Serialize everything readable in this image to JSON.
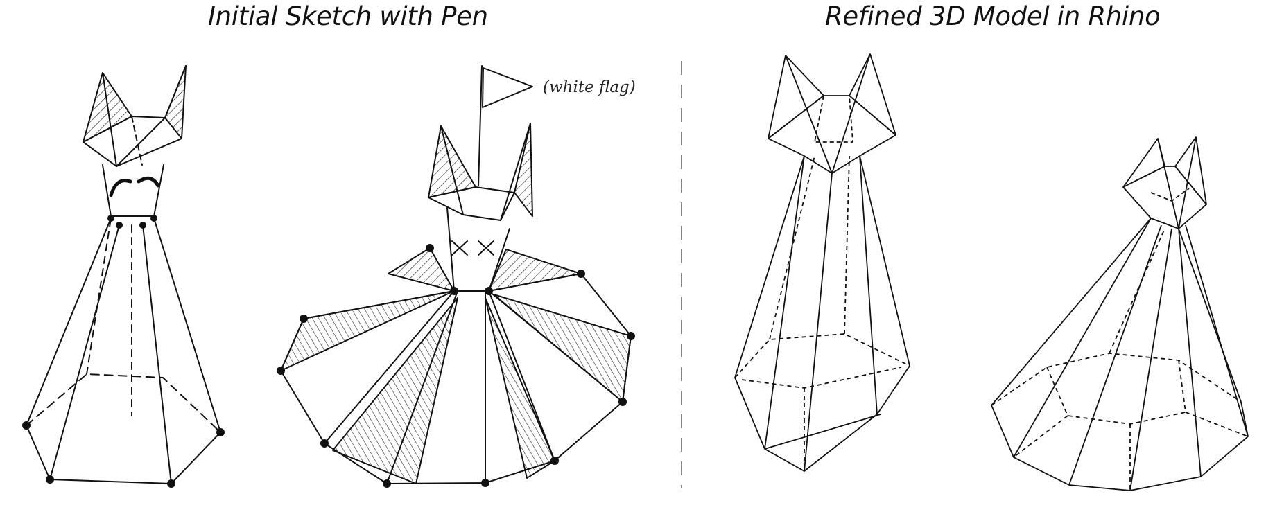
{
  "titles": {
    "left": "Initial Sketch with Pen",
    "right": "Refined 3D Model in Rhino"
  },
  "annotations": {
    "flag_note": "(white flag)"
  },
  "panels": [
    {
      "title": "Initial Sketch with Pen",
      "figures": [
        "sketch-tall-figure",
        "sketch-flared-figure"
      ]
    },
    {
      "title": "Refined 3D Model in Rhino",
      "figures": [
        "model-tall-figure",
        "model-flared-figure"
      ]
    }
  ],
  "colors": {
    "ink": "#111111",
    "background": "#ffffff",
    "divider": "#888888"
  }
}
